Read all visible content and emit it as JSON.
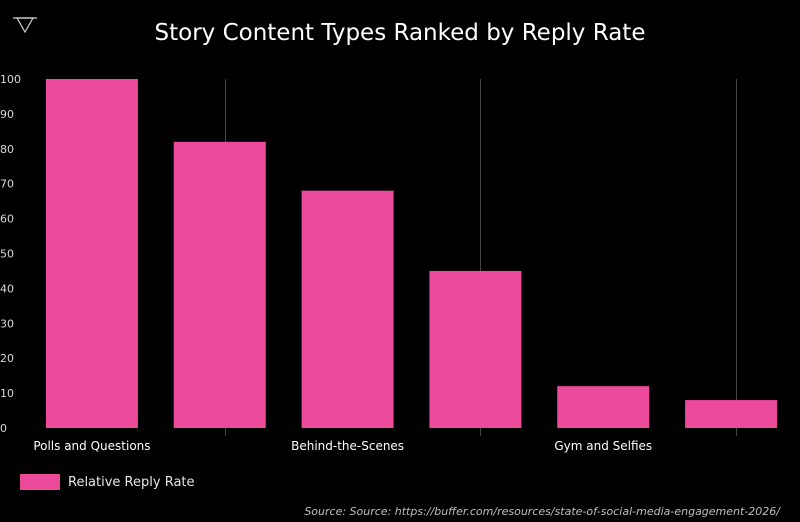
{
  "title": "Story Content Types Ranked by Reply Rate",
  "colors": {
    "bar": "#ec4a9b",
    "background": "#000000",
    "grid": "#444444"
  },
  "logo_icon": "triangle-logo-icon",
  "legend": {
    "label": "Relative Reply Rate",
    "position": "bottom-left"
  },
  "source": "Source: Source: https://buffer.com/resources/state-of-social-media-engagement-2026/",
  "chart_data": {
    "type": "bar",
    "title": "Story Content Types Ranked by Reply Rate",
    "categories": [
      "Polls and Questions",
      "",
      "Behind-the-Scenes",
      "",
      "Gym and Selfies",
      ""
    ],
    "series": [
      {
        "name": "Relative Reply Rate",
        "values": [
          100,
          82,
          68,
          45,
          12,
          8
        ]
      }
    ],
    "ylim": [
      0,
      100
    ],
    "yticks": [
      0,
      10,
      20,
      30,
      40,
      50,
      60,
      70,
      80,
      90,
      100
    ],
    "xlabel": "",
    "ylabel": "",
    "grid": "vertical",
    "legend_position": "bottom-left"
  }
}
